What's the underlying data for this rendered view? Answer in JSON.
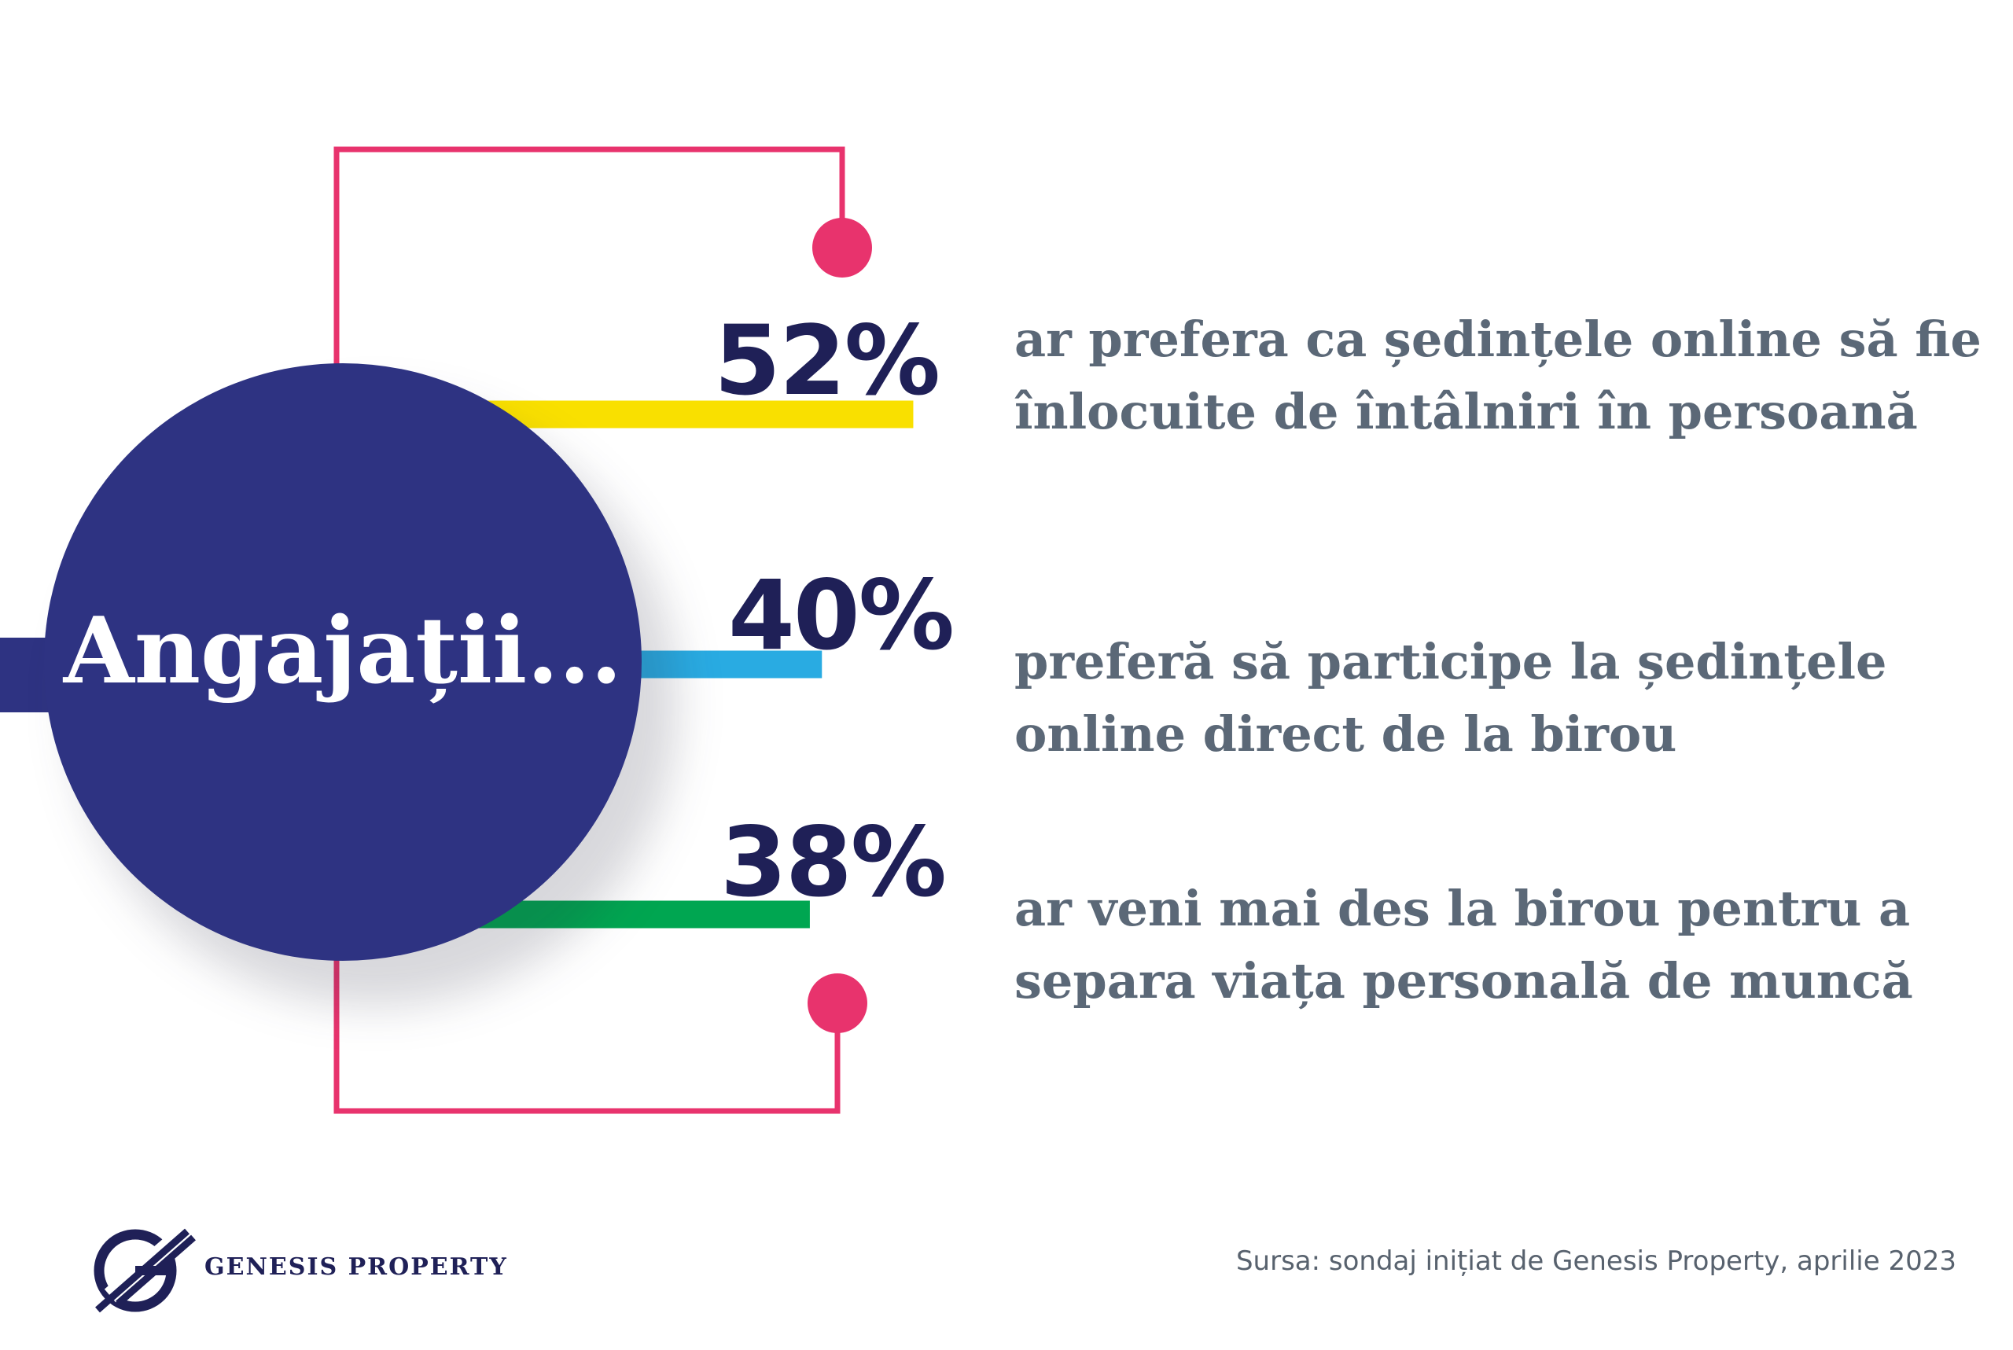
{
  "heading": "Angajații...",
  "chart_data": {
    "type": "bar",
    "categories": [
      "ar prefera ca ședințele online să fie înlocuite de întâlniri în persoană",
      "preferă să participe la ședințele online direct de la birou",
      "ar veni mai des la birou pentru a separa viața personală de muncă"
    ],
    "values": [
      52,
      40,
      38
    ],
    "value_labels": [
      "52%",
      "40%",
      "38%"
    ],
    "unit": "%",
    "statements": [
      [
        "ar prefera ca ședințele online să fie",
        "înlocuite de întâlniri în persoană"
      ],
      [
        "preferă să participe la ședințele",
        "online direct de la birou"
      ],
      [
        "ar veni mai des la birou pentru a",
        "separa viața personală de muncă"
      ]
    ],
    "bar_colors": [
      "#f9e000",
      "#29abe2",
      "#00a651"
    ]
  },
  "colors": {
    "circle": "#2e3382",
    "bracket": "#e8336d",
    "percent": "#1f2057",
    "statement": "#5b6877"
  },
  "footer": {
    "brand": "GENESIS PROPERTY",
    "source": "Sursa: sondaj inițiat de Genesis Property, aprilie 2023",
    "logo_icon": "genesis-g-logo-icon"
  }
}
